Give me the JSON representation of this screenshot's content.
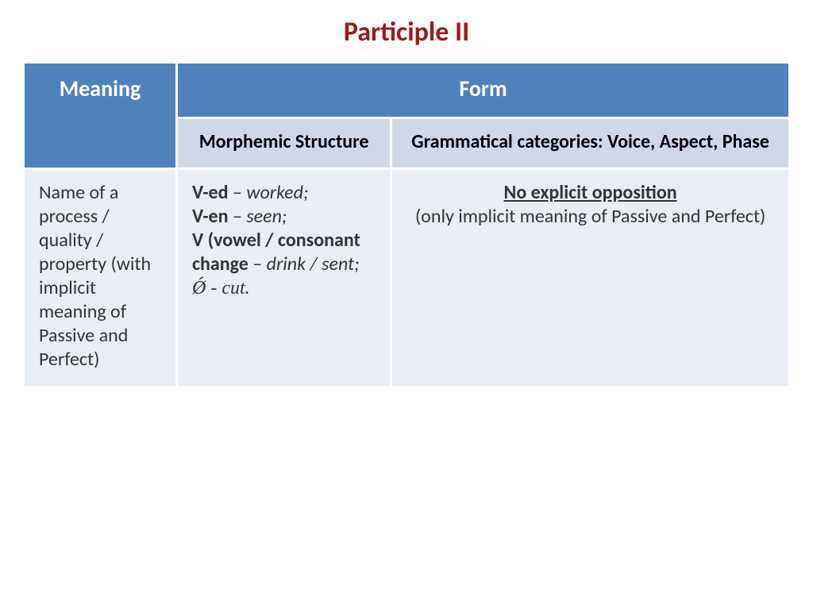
{
  "title": {
    "text": "Participle II",
    "color": "#9e1b1b"
  },
  "table": {
    "col_widths_pct": [
      20,
      28,
      52
    ],
    "header_bg": "#4f81bd",
    "header_fg": "#ffffff",
    "subheader_bg": "#d0d8e8",
    "subheader_fg": "#000000",
    "body_bg": "#e9edf4",
    "body_fg": "#333333",
    "headers": {
      "meaning": "Meaning",
      "form": "Form",
      "morphemic": "Morphemic Structure",
      "grammatical": "Grammatical categories: Voice, Aspect, Phase"
    },
    "body": {
      "meaning": "Name of a process / quality / property (with implicit meaning of Passive and Perfect)",
      "morph": {
        "l1a": "V-ed",
        "l1b": " – ",
        "l1c": "worked;",
        "l2a": "V-en",
        "l2b": " – ",
        "l2c": "seen;",
        "l3a": "V  (vowel / consonant change",
        "l3b": " – ",
        "l3c": "drink / sent;",
        "l4a": "Ǿ - ",
        "l4b": "cut."
      },
      "gram": {
        "line1": "No explicit opposition",
        "line2": "(only implicit meaning of Passive and Perfect)"
      }
    }
  }
}
